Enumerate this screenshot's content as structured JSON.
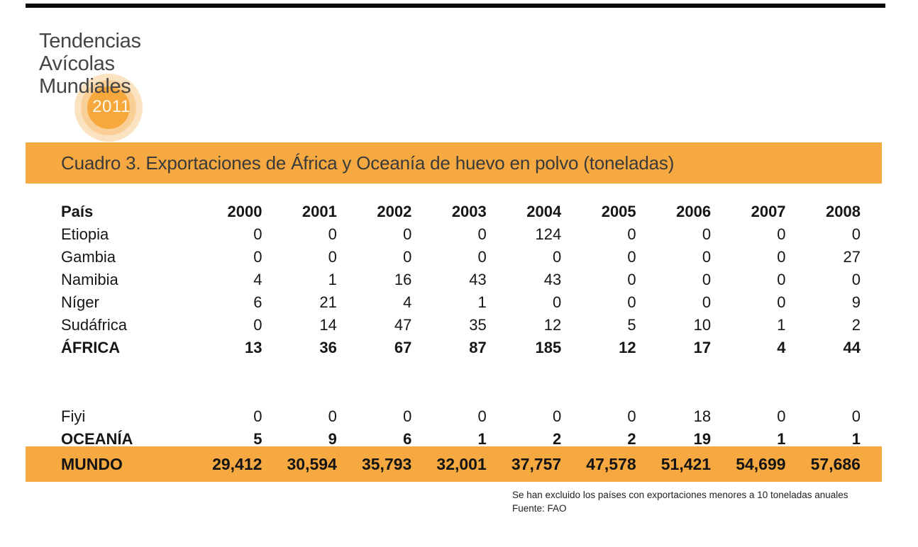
{
  "logo": {
    "line1": "Tendencias",
    "line2": "Avícolas",
    "line3": "Mundiales",
    "year": "2011"
  },
  "title": "Cuadro 3. Exportaciones de África y Oceanía de huevo en polvo (toneladas)",
  "table": {
    "country_header": "País",
    "years": [
      "2000",
      "2001",
      "2002",
      "2003",
      "2004",
      "2005",
      "2006",
      "2007",
      "2008"
    ],
    "rows": [
      {
        "name": "Etiopia",
        "bold": false,
        "values": [
          "0",
          "0",
          "0",
          "0",
          "124",
          "0",
          "0",
          "0",
          "0"
        ]
      },
      {
        "name": "Gambia",
        "bold": false,
        "values": [
          "0",
          "0",
          "0",
          "0",
          "0",
          "0",
          "0",
          "0",
          "27"
        ]
      },
      {
        "name": "Namibia",
        "bold": false,
        "values": [
          "4",
          "1",
          "16",
          "43",
          "43",
          "0",
          "0",
          "0",
          "0"
        ]
      },
      {
        "name": "Níger",
        "bold": false,
        "values": [
          "6",
          "21",
          "4",
          "1",
          "0",
          "0",
          "0",
          "0",
          "9"
        ]
      },
      {
        "name": "Sudáfrica",
        "bold": false,
        "values": [
          "0",
          "14",
          "47",
          "35",
          "12",
          "5",
          "10",
          "1",
          "2"
        ]
      },
      {
        "name": "ÁFRICA",
        "bold": true,
        "values": [
          "13",
          "36",
          "67",
          "87",
          "185",
          "12",
          "17",
          "4",
          "44"
        ]
      },
      {
        "spacer": true
      },
      {
        "name": "Fiyi",
        "bold": false,
        "values": [
          "0",
          "0",
          "0",
          "0",
          "0",
          "0",
          "18",
          "0",
          "0"
        ]
      },
      {
        "name": "OCEANÍA",
        "bold": true,
        "values": [
          "5",
          "9",
          "6",
          "1",
          "2",
          "2",
          "19",
          "1",
          "1"
        ]
      }
    ],
    "world_row": {
      "name": "MUNDO",
      "values": [
        "29,412",
        "30,594",
        "35,793",
        "32,001",
        "37,757",
        "47,578",
        "51,421",
        "54,699",
        "57,686"
      ]
    }
  },
  "footnotes": {
    "line1": "Se han excluido los países con exportaciones menores a 10 toneladas anuales",
    "line2": "Fuente: FAO"
  },
  "colors": {
    "accent_orange": "#f7a941",
    "circle_outer": "#fbe3c1",
    "circle_mid": "#f9cf97",
    "circle_inner": "#f6a83d",
    "top_rule": "#0a0a0a"
  }
}
